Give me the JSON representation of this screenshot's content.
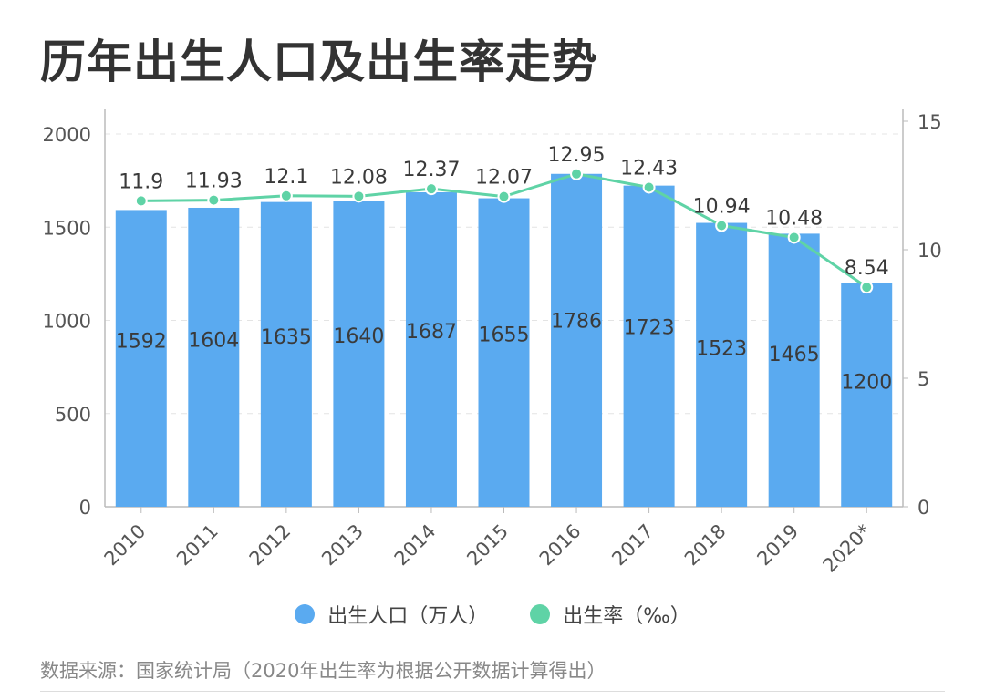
{
  "title": "历年出生人口及出生率走势",
  "source": "数据来源：国家统计局（2020年出生率为根据公开数据计算得出）",
  "colors": {
    "bar": "#5aaaf0",
    "line": "#5fd3a6",
    "axis": "#bbbbbb",
    "grid": "#e4e4e4"
  },
  "legend": {
    "population": "出生人口（万人）",
    "rate": "出生率（‰）"
  },
  "chart_data": {
    "type": "bar+line",
    "categories": [
      "2010",
      "2011",
      "2012",
      "2013",
      "2014",
      "2015",
      "2016",
      "2017",
      "2018",
      "2019",
      "2020*"
    ],
    "series": [
      {
        "name": "出生人口（万人）",
        "type": "bar",
        "axis": "left",
        "values": [
          1592,
          1604,
          1635,
          1640,
          1687,
          1655,
          1786,
          1723,
          1523,
          1465,
          1200
        ]
      },
      {
        "name": "出生率（‰）",
        "type": "line",
        "axis": "right",
        "values": [
          11.9,
          11.93,
          12.1,
          12.08,
          12.37,
          12.07,
          12.95,
          12.43,
          10.94,
          10.48,
          8.54
        ]
      }
    ],
    "left_axis": {
      "range": [
        0,
        2000
      ],
      "ticks": [
        "0",
        "500",
        "1000",
        "1500",
        "2000"
      ]
    },
    "right_axis": {
      "range": [
        0,
        15
      ],
      "ticks": [
        "0",
        "5",
        "10",
        "15"
      ]
    },
    "grid": true,
    "legend_position": "bottom"
  }
}
